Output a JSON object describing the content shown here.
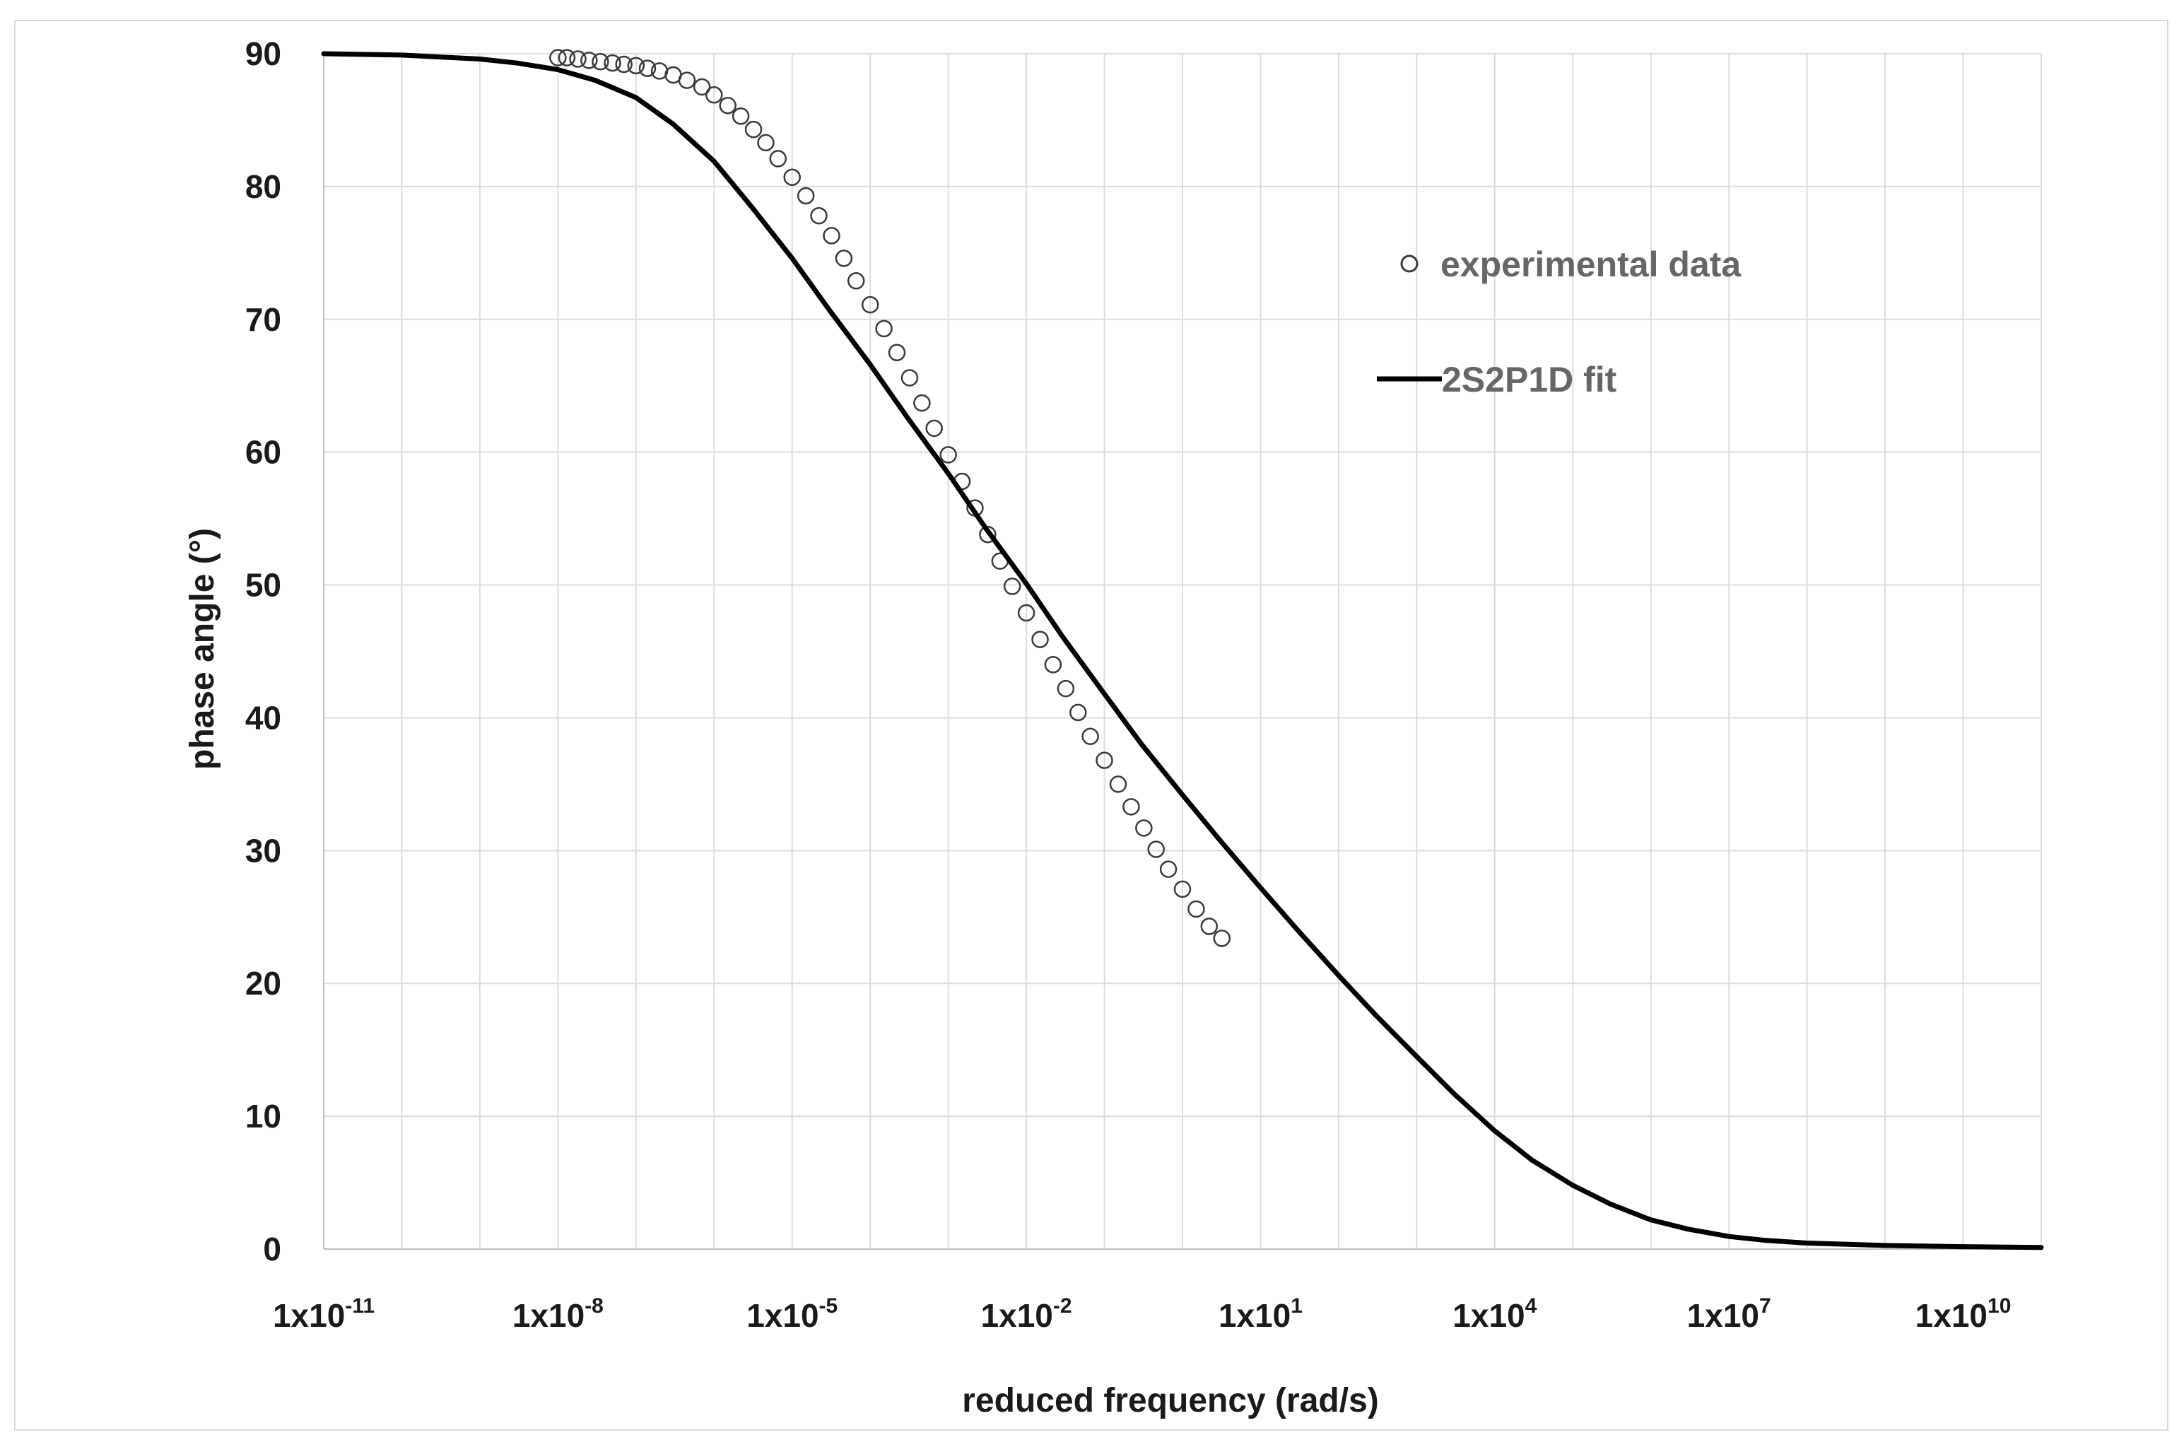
{
  "chart_data": {
    "type": "scatter",
    "title": "",
    "xlabel": "reduced frequency (rad/s)",
    "ylabel": "phase angle (°)",
    "x_scale": "log10",
    "xlim": [
      1e-11,
      100000000000.0
    ],
    "ylim": [
      0,
      90
    ],
    "x_ticks": [
      {
        "base": "1x10",
        "exp": "-11",
        "value": 1e-11
      },
      {
        "base": "1x10",
        "exp": "-8",
        "value": 1e-08
      },
      {
        "base": "1x10",
        "exp": "-5",
        "value": 1e-05
      },
      {
        "base": "1x10",
        "exp": "-2",
        "value": 0.01
      },
      {
        "base": "1x10",
        "exp": "1",
        "value": 10.0
      },
      {
        "base": "1x10",
        "exp": "4",
        "value": 10000.0
      },
      {
        "base": "1x10",
        "exp": "7",
        "value": 10000000.0
      },
      {
        "base": "1x10",
        "exp": "10",
        "value": 10000000000.0
      }
    ],
    "y_ticks": [
      0,
      10,
      20,
      30,
      40,
      50,
      60,
      70,
      80,
      90
    ],
    "grid": true,
    "legend_position": "top-right",
    "series": [
      {
        "name": "experimental data",
        "style": "hollow-circle-markers",
        "color": "#3a3a3a",
        "points": [
          [
            1e-08,
            89.7
          ],
          [
            1.3e-08,
            89.7
          ],
          [
            1.8e-08,
            89.6
          ],
          [
            2.5e-08,
            89.5
          ],
          [
            3.5e-08,
            89.4
          ],
          [
            5e-08,
            89.3
          ],
          [
            7e-08,
            89.2
          ],
          [
            1e-07,
            89.1
          ],
          [
            1.4e-07,
            88.9
          ],
          [
            2e-07,
            88.7
          ],
          [
            3e-07,
            88.4
          ],
          [
            4.5e-07,
            88.0
          ],
          [
            7e-07,
            87.5
          ],
          [
            1e-06,
            86.9
          ],
          [
            1.5e-06,
            86.1
          ],
          [
            2.2e-06,
            85.3
          ],
          [
            3.2e-06,
            84.3
          ],
          [
            4.6e-06,
            83.3
          ],
          [
            6.6e-06,
            82.1
          ],
          [
            1e-05,
            80.7
          ],
          [
            1.5e-05,
            79.3
          ],
          [
            2.2e-05,
            77.8
          ],
          [
            3.2e-05,
            76.3
          ],
          [
            4.6e-05,
            74.6
          ],
          [
            6.6e-05,
            72.9
          ],
          [
            0.0001,
            71.1
          ],
          [
            0.00015,
            69.3
          ],
          [
            0.00022,
            67.5
          ],
          [
            0.00032,
            65.6
          ],
          [
            0.00046,
            63.7
          ],
          [
            0.00066,
            61.8
          ],
          [
            0.001,
            59.8
          ],
          [
            0.0015,
            57.8
          ],
          [
            0.0022,
            55.8
          ],
          [
            0.0032,
            53.8
          ],
          [
            0.0046,
            51.8
          ],
          [
            0.0066,
            49.9
          ],
          [
            0.01,
            47.9
          ],
          [
            0.015,
            45.9
          ],
          [
            0.022,
            44.0
          ],
          [
            0.032,
            42.2
          ],
          [
            0.046,
            40.4
          ],
          [
            0.066,
            38.6
          ],
          [
            0.1,
            36.8
          ],
          [
            0.15,
            35.0
          ],
          [
            0.22,
            33.3
          ],
          [
            0.32,
            31.7
          ],
          [
            0.46,
            30.1
          ],
          [
            0.66,
            28.6
          ],
          [
            1,
            27.1
          ],
          [
            1.5,
            25.6
          ],
          [
            2.2,
            24.3
          ],
          [
            3.2,
            23.4
          ]
        ]
      },
      {
        "name": "2S2P1D fit",
        "style": "line",
        "color": "#000000",
        "points": [
          [
            1e-11,
            90.0
          ],
          [
            1e-10,
            89.9
          ],
          [
            1e-09,
            89.6
          ],
          [
            3e-09,
            89.3
          ],
          [
            1e-08,
            88.8
          ],
          [
            3e-08,
            88.0
          ],
          [
            1e-07,
            86.7
          ],
          [
            3e-07,
            84.7
          ],
          [
            1e-06,
            81.9
          ],
          [
            3e-06,
            78.5
          ],
          [
            1e-05,
            74.6
          ],
          [
            3e-05,
            70.7
          ],
          [
            0.0001,
            66.6
          ],
          [
            0.0003,
            62.6
          ],
          [
            0.001,
            58.4
          ],
          [
            0.003,
            54.3
          ],
          [
            0.01,
            50.1
          ],
          [
            0.03,
            46.0
          ],
          [
            0.1,
            41.8
          ],
          [
            0.3,
            38.0
          ],
          [
            1,
            34.2
          ],
          [
            3,
            30.8
          ],
          [
            10,
            27.2
          ],
          [
            30,
            24.0
          ],
          [
            100,
            20.6
          ],
          [
            300,
            17.6
          ],
          [
            1000,
            14.5
          ],
          [
            3000,
            11.7
          ],
          [
            10000.0,
            8.9
          ],
          [
            30000.0,
            6.7
          ],
          [
            100000.0,
            4.8
          ],
          [
            300000.0,
            3.4
          ],
          [
            1000000.0,
            2.2
          ],
          [
            3000000.0,
            1.5
          ],
          [
            10000000.0,
            0.95
          ],
          [
            30000000.0,
            0.65
          ],
          [
            100000000.0,
            0.45
          ],
          [
            1000000000.0,
            0.27
          ],
          [
            10000000000.0,
            0.18
          ],
          [
            100000000000.0,
            0.12
          ]
        ]
      }
    ]
  }
}
